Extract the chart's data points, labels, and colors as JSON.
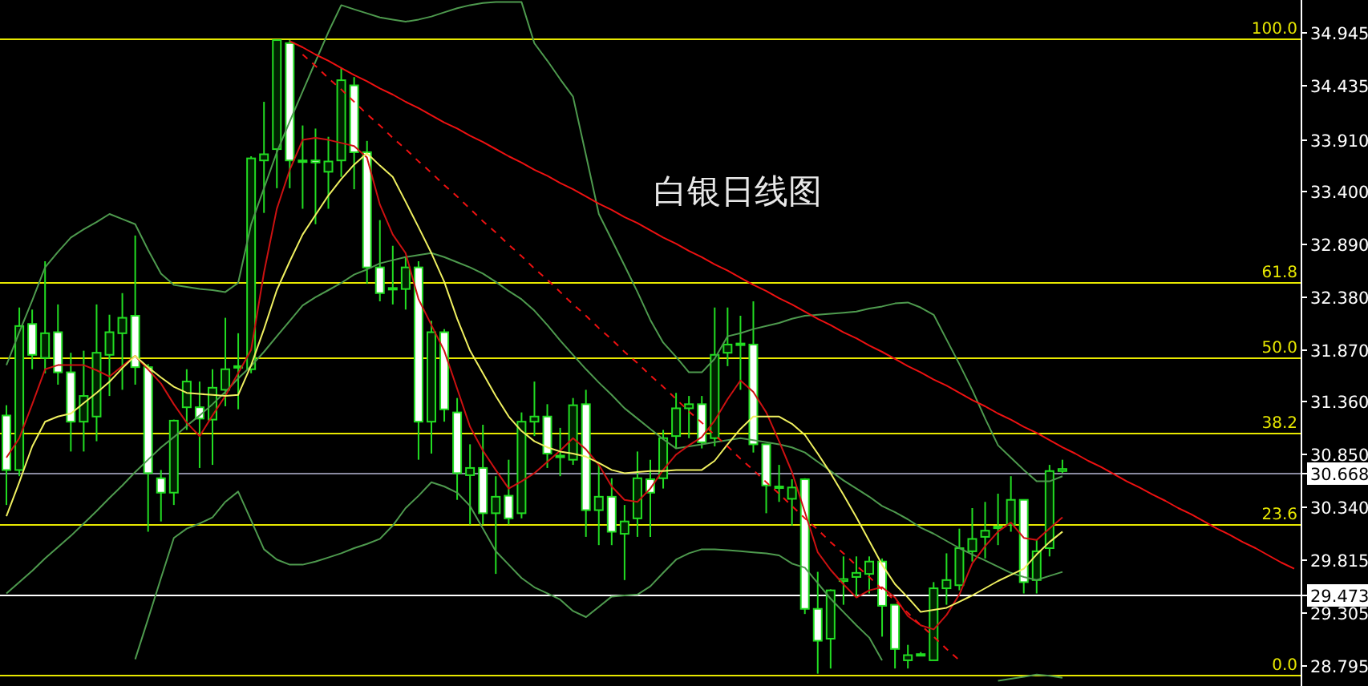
{
  "chart_data": {
    "type": "candlestick",
    "title": "白银日线图",
    "color": "#22dd22",
    "categories": [
      null,
      null,
      null,
      null,
      null,
      null,
      null,
      null,
      null,
      null,
      null,
      null,
      null,
      null,
      null,
      null,
      null,
      null,
      null,
      null,
      null,
      null,
      null,
      null,
      null,
      null,
      null,
      null,
      null,
      null,
      null,
      null,
      null,
      null,
      null,
      null,
      null,
      null,
      null,
      null,
      null,
      null,
      null,
      null,
      null,
      null,
      null,
      null,
      null,
      null,
      null,
      null,
      null,
      null,
      null,
      null,
      null,
      null,
      null,
      null,
      null,
      null,
      null,
      null,
      null,
      null,
      null,
      null,
      null,
      null,
      null,
      null,
      null,
      null,
      null,
      null,
      null,
      null,
      null,
      null,
      null,
      null,
      null,
      null,
      null,
      null,
      null,
      null,
      null,
      null,
      null,
      null,
      null,
      null,
      null,
      null,
      null,
      null,
      null,
      null,
      null
    ],
    "ohlc": [
      [
        31.22,
        31.32,
        30.35,
        30.69
      ],
      [
        30.69,
        32.27,
        30.63,
        32.09
      ],
      [
        32.11,
        32.25,
        31.67,
        31.81
      ],
      [
        31.78,
        32.72,
        31.63,
        32.02
      ],
      [
        32.03,
        32.3,
        31.52,
        31.64
      ],
      [
        31.64,
        31.83,
        30.87,
        31.16
      ],
      [
        31.16,
        31.85,
        30.87,
        31.41
      ],
      [
        31.21,
        32.3,
        30.97,
        31.83
      ],
      [
        31.81,
        32.2,
        31.41,
        32.03
      ],
      [
        32.02,
        32.41,
        31.47,
        32.17
      ],
      [
        32.19,
        32.97,
        31.52,
        31.69
      ],
      [
        31.69,
        31.72,
        30.09,
        30.66
      ],
      [
        30.61,
        30.69,
        30.19,
        30.47
      ],
      [
        30.47,
        31.18,
        30.35,
        31.17
      ],
      [
        31.3,
        31.67,
        31.08,
        31.55
      ],
      [
        31.3,
        31.55,
        30.71,
        31.19
      ],
      [
        31.18,
        31.67,
        30.74,
        31.49
      ],
      [
        31.47,
        32.17,
        31.31,
        31.67
      ],
      [
        31.69,
        32.02,
        31.28,
        31.7
      ],
      [
        31.67,
        33.74,
        31.63,
        33.72
      ],
      [
        33.7,
        34.27,
        33.19,
        33.76
      ],
      [
        33.81,
        34.87,
        33.43,
        34.87
      ],
      [
        34.84,
        34.87,
        33.43,
        33.7
      ],
      [
        33.69,
        34.04,
        33.23,
        33.7
      ],
      [
        33.7,
        34.01,
        33.08,
        33.68
      ],
      [
        33.59,
        33.93,
        33.23,
        33.69
      ],
      [
        33.7,
        34.6,
        33.54,
        34.48
      ],
      [
        34.43,
        34.51,
        33.42,
        33.78
      ],
      [
        33.78,
        33.89,
        32.5,
        32.66
      ],
      [
        32.66,
        33.12,
        32.33,
        32.41
      ],
      [
        32.45,
        32.87,
        32.3,
        32.46
      ],
      [
        32.45,
        32.76,
        32.25,
        32.66
      ],
      [
        32.66,
        32.72,
        30.79,
        31.16
      ],
      [
        31.16,
        32.14,
        30.85,
        32.03
      ],
      [
        32.03,
        32.06,
        31.16,
        31.28
      ],
      [
        31.25,
        31.39,
        30.4,
        30.66
      ],
      [
        30.64,
        30.94,
        30.16,
        30.71
      ],
      [
        30.71,
        31.13,
        30.16,
        30.27
      ],
      [
        30.27,
        30.63,
        29.68,
        30.43
      ],
      [
        30.44,
        30.79,
        30.16,
        30.22
      ],
      [
        30.27,
        31.25,
        30.22,
        31.16
      ],
      [
        31.16,
        31.55,
        31.02,
        31.21
      ],
      [
        31.21,
        31.33,
        30.71,
        30.85
      ],
      [
        30.82,
        31.1,
        30.63,
        30.83
      ],
      [
        30.79,
        31.39,
        30.74,
        31.32
      ],
      [
        31.33,
        31.47,
        30.04,
        30.3
      ],
      [
        30.3,
        30.74,
        29.96,
        30.43
      ],
      [
        30.43,
        30.61,
        29.96,
        30.09
      ],
      [
        30.07,
        30.35,
        29.62,
        30.19
      ],
      [
        30.22,
        30.87,
        30.04,
        30.61
      ],
      [
        30.6,
        30.79,
        30.04,
        30.47
      ],
      [
        30.61,
        31.08,
        30.51,
        31.0
      ],
      [
        31.02,
        31.44,
        30.9,
        31.29
      ],
      [
        31.29,
        31.41,
        31.0,
        31.33
      ],
      [
        31.33,
        31.41,
        30.9,
        30.96
      ],
      [
        31.0,
        32.27,
        30.92,
        31.81
      ],
      [
        31.83,
        32.27,
        31.7,
        31.91
      ],
      [
        31.91,
        32.19,
        31.47,
        31.92
      ],
      [
        31.91,
        32.33,
        30.86,
        30.94
      ],
      [
        30.94,
        30.94,
        30.27,
        30.54
      ],
      [
        30.52,
        30.74,
        30.38,
        30.53
      ],
      [
        30.41,
        30.6,
        30.15,
        30.52
      ],
      [
        30.6,
        30.61,
        29.29,
        29.34
      ],
      [
        29.34,
        29.7,
        28.71,
        29.03
      ],
      [
        29.05,
        29.53,
        28.76,
        29.52
      ],
      [
        29.61,
        29.85,
        29.38,
        29.63
      ],
      [
        29.65,
        29.85,
        29.46,
        29.69
      ],
      [
        29.68,
        29.85,
        29.49,
        29.8
      ],
      [
        29.8,
        29.83,
        29.07,
        29.37
      ],
      [
        29.38,
        29.38,
        28.76,
        28.95
      ],
      [
        28.84,
        28.99,
        28.76,
        28.89
      ],
      [
        28.9,
        28.92,
        28.88,
        28.9
      ],
      [
        28.84,
        29.6,
        28.84,
        29.54
      ],
      [
        29.54,
        29.88,
        29.38,
        29.62
      ],
      [
        29.57,
        30.12,
        29.52,
        29.93
      ],
      [
        29.9,
        30.32,
        29.8,
        30.02
      ],
      [
        30.04,
        30.38,
        29.83,
        30.1
      ],
      [
        30.13,
        30.46,
        29.96,
        30.14
      ],
      [
        30.16,
        30.63,
        30.09,
        30.4
      ],
      [
        30.4,
        30.4,
        29.49,
        29.6
      ],
      [
        29.62,
        30.01,
        29.49,
        29.9
      ],
      [
        29.93,
        30.74,
        29.85,
        30.68
      ],
      [
        30.68,
        30.79,
        30.66,
        30.7
      ],
      null,
      null,
      null,
      null,
      null,
      null,
      null,
      null,
      null,
      null,
      null,
      null,
      null,
      null,
      null,
      null,
      null,
      null
    ],
    "series": [
      {
        "type": "line",
        "color": "#4e9a4e",
        "values": [
          31.71,
          32.03,
          32.34,
          32.66,
          32.81,
          32.95,
          33.03,
          33.1,
          33.18,
          33.13,
          33.08,
          32.83,
          32.6,
          32.49,
          32.47,
          32.45,
          32.44,
          32.42,
          32.51,
          33.08,
          33.43,
          33.78,
          34.08,
          34.37,
          34.66,
          34.95,
          35.21,
          35.17,
          35.13,
          35.09,
          35.07,
          35.05,
          35.07,
          35.1,
          35.14,
          35.18,
          35.21,
          35.23,
          35.24,
          35.24,
          35.24,
          34.84,
          34.67,
          34.49,
          34.32,
          33.75,
          33.18,
          32.93,
          32.68,
          32.42,
          32.15,
          31.93,
          31.79,
          31.64,
          31.64,
          31.77,
          31.99,
          32.02,
          32.06,
          32.09,
          32.12,
          32.16,
          32.19,
          32.2,
          32.21,
          32.22,
          32.23,
          32.26,
          32.28,
          32.31,
          32.32,
          32.27,
          32.2,
          31.96,
          31.72,
          31.47,
          31.19,
          30.93,
          30.81,
          30.69,
          30.58,
          30.58,
          30.63,
          null,
          null,
          null,
          null,
          null,
          null,
          null,
          null,
          null,
          null,
          null,
          null,
          null,
          null,
          null,
          null,
          null,
          null
        ]
      },
      {
        "type": "line",
        "color": "#4e9a4e",
        "values": [
          29.49,
          29.6,
          29.71,
          29.83,
          29.94,
          30.05,
          30.17,
          30.29,
          30.42,
          30.54,
          30.67,
          30.79,
          30.91,
          31.01,
          31.12,
          31.22,
          31.33,
          31.45,
          31.58,
          31.7,
          31.84,
          31.99,
          32.14,
          32.29,
          32.37,
          32.44,
          32.51,
          32.59,
          32.64,
          32.7,
          32.73,
          32.76,
          32.78,
          32.8,
          32.76,
          32.71,
          32.66,
          32.6,
          32.52,
          32.43,
          32.35,
          32.24,
          32.1,
          31.95,
          31.81,
          31.67,
          31.54,
          31.42,
          31.29,
          31.19,
          31.09,
          30.99,
          30.9,
          30.92,
          30.94,
          30.96,
          30.98,
          31.0,
          30.98,
          30.96,
          30.94,
          30.91,
          30.86,
          30.77,
          30.68,
          30.59,
          30.51,
          30.43,
          30.34,
          30.28,
          30.21,
          30.13,
          30.07,
          30.0,
          29.93,
          29.87,
          29.81,
          29.75,
          29.69,
          29.65,
          29.62,
          29.66,
          29.7,
          null,
          null,
          null,
          null,
          null,
          null,
          null,
          null,
          null,
          null,
          null,
          null,
          null,
          null,
          null,
          null,
          null,
          null
        ]
      },
      {
        "type": "line",
        "color": "#4e9a4e",
        "values": [
          null,
          null,
          null,
          null,
          null,
          null,
          null,
          null,
          null,
          null,
          28.85,
          29.24,
          29.64,
          30.03,
          30.12,
          30.17,
          30.23,
          30.38,
          30.48,
          30.2,
          29.92,
          29.82,
          29.77,
          29.77,
          29.8,
          29.84,
          29.88,
          29.93,
          29.97,
          30.02,
          30.15,
          30.32,
          30.44,
          30.57,
          30.53,
          30.47,
          30.34,
          30.12,
          29.9,
          29.77,
          29.64,
          29.55,
          29.49,
          29.43,
          29.32,
          29.26,
          29.36,
          29.46,
          29.47,
          29.48,
          29.56,
          29.69,
          29.82,
          29.88,
          29.92,
          29.92,
          29.91,
          29.9,
          29.89,
          29.88,
          29.86,
          29.78,
          29.74,
          29.59,
          29.44,
          29.31,
          29.18,
          29.06,
          28.84,
          null,
          null,
          null,
          null,
          null,
          null,
          null,
          null,
          28.64,
          28.66,
          28.68,
          28.7,
          28.69,
          28.67,
          null,
          null,
          null,
          null,
          null,
          null,
          null,
          null,
          null,
          null,
          null,
          null,
          null,
          null,
          null,
          null,
          null,
          null
        ]
      },
      {
        "type": "line",
        "color": "#cc1111",
        "values": [
          30.81,
          31.0,
          31.33,
          31.67,
          31.71,
          31.71,
          31.71,
          31.66,
          31.6,
          31.7,
          31.8,
          31.67,
          31.53,
          31.33,
          31.15,
          31.02,
          31.22,
          31.41,
          31.63,
          31.86,
          32.61,
          33.23,
          33.61,
          33.9,
          33.92,
          33.9,
          33.87,
          33.84,
          33.73,
          33.27,
          32.98,
          32.8,
          32.35,
          32.1,
          31.85,
          31.48,
          31.11,
          30.88,
          30.69,
          30.51,
          30.58,
          30.66,
          30.77,
          30.88,
          31.0,
          30.89,
          30.74,
          30.53,
          30.4,
          30.38,
          30.51,
          30.69,
          30.84,
          30.93,
          31.01,
          31.17,
          31.38,
          31.56,
          31.45,
          31.25,
          30.97,
          30.67,
          30.28,
          29.89,
          29.72,
          29.58,
          29.45,
          29.52,
          29.55,
          29.45,
          29.27,
          29.18,
          29.14,
          29.28,
          29.48,
          29.78,
          29.95,
          30.09,
          30.18,
          30.03,
          30.01,
          30.12,
          30.23,
          null,
          null,
          null,
          null,
          null,
          null,
          null,
          null,
          null,
          null,
          null,
          null,
          null,
          null,
          null,
          null,
          null,
          null
        ]
      },
      {
        "type": "line",
        "color": "#f0f060",
        "values": [
          30.24,
          30.57,
          30.92,
          31.16,
          31.21,
          31.24,
          31.34,
          31.44,
          31.55,
          31.68,
          31.8,
          31.69,
          31.59,
          31.5,
          31.44,
          31.43,
          31.42,
          31.41,
          31.42,
          31.71,
          32.06,
          32.44,
          32.72,
          32.98,
          33.17,
          33.36,
          33.52,
          33.66,
          33.77,
          33.65,
          33.54,
          33.3,
          33.05,
          32.8,
          32.52,
          32.16,
          31.85,
          31.63,
          31.41,
          31.21,
          31.07,
          30.97,
          30.91,
          30.87,
          30.85,
          30.82,
          30.76,
          30.69,
          30.66,
          30.67,
          30.68,
          30.68,
          30.69,
          30.69,
          30.69,
          30.78,
          30.94,
          31.09,
          31.21,
          31.21,
          31.21,
          31.14,
          31.03,
          30.85,
          30.66,
          30.45,
          30.23,
          30.0,
          29.77,
          29.58,
          29.45,
          29.31,
          29.33,
          29.35,
          29.41,
          29.47,
          29.54,
          29.61,
          29.67,
          29.73,
          29.87,
          29.99,
          30.09,
          null,
          null,
          null,
          null,
          null,
          null,
          null,
          null,
          null,
          null,
          null,
          null,
          null,
          null,
          null,
          null,
          null,
          null
        ]
      },
      {
        "type": "line",
        "color": "#ee1111",
        "values": [
          null,
          null,
          null,
          null,
          null,
          null,
          null,
          null,
          null,
          null,
          null,
          null,
          null,
          null,
          null,
          null,
          null,
          null,
          null,
          null,
          null,
          null,
          34.86,
          34.8,
          34.73,
          34.67,
          34.6,
          34.53,
          34.47,
          34.4,
          34.34,
          34.27,
          34.21,
          34.14,
          34.07,
          34.01,
          33.94,
          33.88,
          33.81,
          33.74,
          33.68,
          33.61,
          33.55,
          33.48,
          33.42,
          33.35,
          33.28,
          33.22,
          33.15,
          33.09,
          33.02,
          32.95,
          32.89,
          32.82,
          32.76,
          32.69,
          32.63,
          32.56,
          32.49,
          32.43,
          32.36,
          32.3,
          32.23,
          32.16,
          32.1,
          32.03,
          31.97,
          31.9,
          31.84,
          31.77,
          31.7,
          31.64,
          31.57,
          31.51,
          31.44,
          31.37,
          31.31,
          31.24,
          31.18,
          31.11,
          31.05,
          30.98,
          30.91,
          30.85,
          30.78,
          30.72,
          30.65,
          30.58,
          30.52,
          30.45,
          30.39,
          30.32,
          30.26,
          30.19,
          30.12,
          30.06,
          29.99,
          29.93,
          29.86,
          29.79,
          29.73
        ]
      },
      {
        "type": "line",
        "color": "#ee1111",
        "line_style": "dashed",
        "values": [
          null,
          null,
          null,
          null,
          null,
          null,
          null,
          null,
          null,
          null,
          null,
          null,
          null,
          null,
          null,
          null,
          null,
          null,
          null,
          null,
          null,
          null,
          null,
          34.73,
          34.62,
          34.5,
          34.39,
          34.27,
          34.15,
          34.04,
          33.92,
          33.81,
          33.69,
          33.58,
          33.46,
          33.35,
          33.23,
          33.11,
          33.0,
          32.88,
          32.77,
          32.65,
          32.54,
          32.42,
          32.3,
          32.19,
          32.07,
          31.96,
          31.84,
          31.73,
          31.61,
          31.5,
          31.38,
          31.26,
          31.15,
          31.03,
          30.92,
          30.8,
          30.69,
          30.57,
          30.46,
          30.34,
          30.22,
          30.11,
          29.99,
          29.88,
          29.76,
          29.65,
          29.53,
          29.42,
          29.3,
          29.18,
          29.07,
          28.95,
          28.84,
          null,
          null,
          null,
          null,
          null,
          null,
          null,
          null,
          null,
          null,
          null,
          null,
          null,
          null,
          null,
          null,
          null,
          null,
          null,
          null,
          null,
          null,
          null,
          null,
          null,
          null
        ]
      }
    ],
    "ref_lines": [
      {
        "axis": "y",
        "value": 34.88,
        "color": "#e8e800"
      },
      {
        "axis": "y",
        "value": 32.52,
        "color": "#e8e800"
      },
      {
        "axis": "y",
        "value": 31.79,
        "color": "#e8e800"
      },
      {
        "axis": "y",
        "value": 31.06,
        "color": "#e8e800"
      },
      {
        "axis": "y",
        "value": 30.16,
        "color": "#e8e800"
      },
      {
        "axis": "y",
        "value": 28.7,
        "color": "#e8e800"
      },
      {
        "axis": "y",
        "value": 30.668,
        "color": "#8a8aa0"
      },
      {
        "axis": "y",
        "value": 29.473,
        "color": "#ffffff"
      }
    ],
    "annotations": [
      {
        "text": "100.0",
        "y": 34.88
      },
      {
        "text": "61.8",
        "y": 32.52
      },
      {
        "text": "50.0",
        "y": 31.79
      },
      {
        "text": "38.2",
        "y": 31.06
      },
      {
        "text": "23.6",
        "y": 30.16
      },
      {
        "text": "0.0",
        "y": 28.7
      }
    ],
    "ylim": [
      28.59,
      35.26
    ],
    "yticks": [
      {
        "value": 34.945,
        "label": "34.945"
      },
      {
        "value": 34.435,
        "label": "34.435"
      },
      {
        "value": 33.91,
        "label": "33.910"
      },
      {
        "value": 33.4,
        "label": "33.400"
      },
      {
        "value": 32.89,
        "label": "32.890"
      },
      {
        "value": 32.38,
        "label": "32.380"
      },
      {
        "value": 31.87,
        "label": "31.870"
      },
      {
        "value": 31.36,
        "label": "31.360"
      },
      {
        "value": 30.85,
        "label": "30.850"
      },
      {
        "value": 30.668,
        "label": "30.668"
      },
      {
        "value": 30.34,
        "label": "30.340"
      },
      {
        "value": 29.815,
        "label": "29.815"
      },
      {
        "value": 29.473,
        "label": "29.473"
      },
      {
        "value": 29.305,
        "label": "29.305"
      },
      {
        "value": 28.795,
        "label": "28.795"
      }
    ],
    "tick_labels": "y"
  }
}
